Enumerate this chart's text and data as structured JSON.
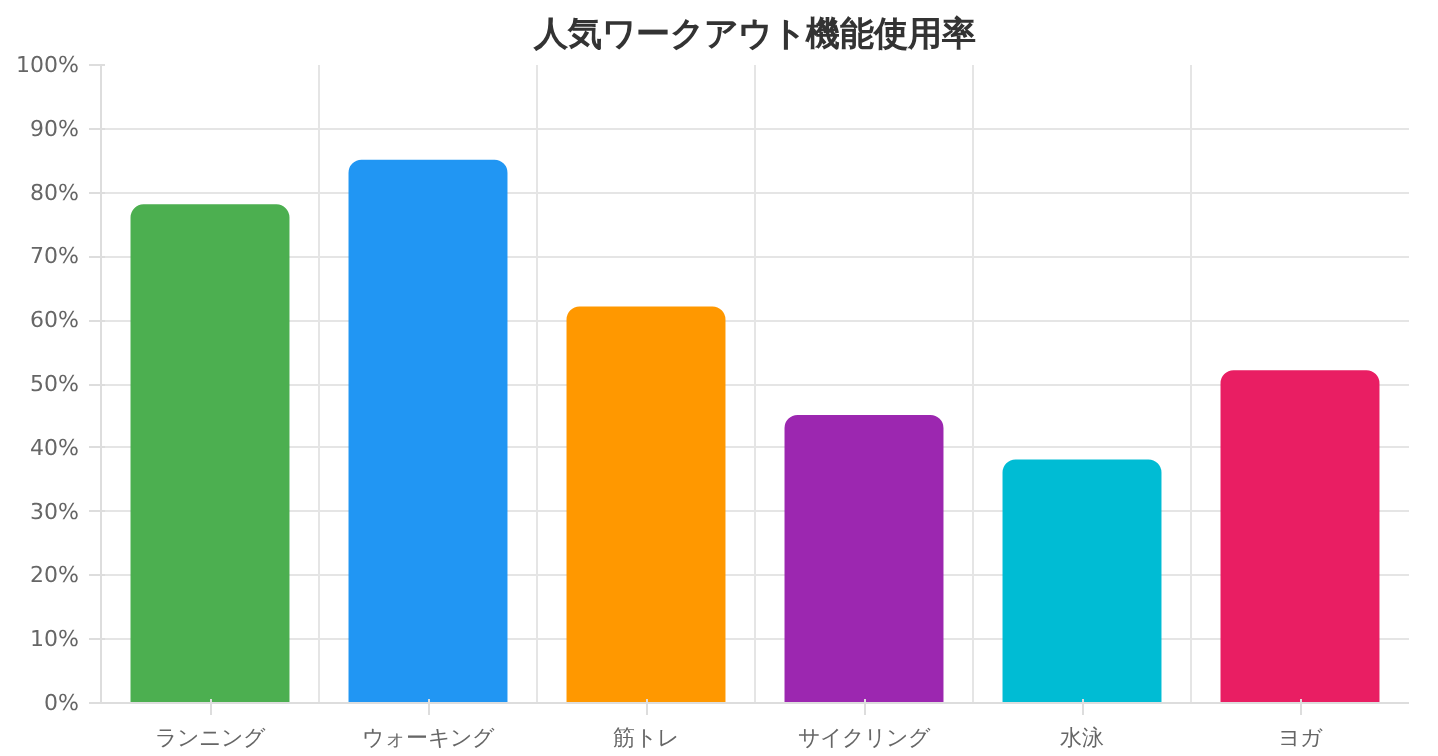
{
  "chart_data": {
    "type": "bar",
    "title": "人気ワークアウト機能使用率",
    "categories": [
      "ランニング",
      "ウォーキング",
      "筋トレ",
      "サイクリング",
      "水泳",
      "ヨガ"
    ],
    "values": [
      78,
      85,
      62,
      45,
      38,
      52
    ],
    "colors": [
      "#4caf50",
      "#2196f3",
      "#ff9800",
      "#9c27b0",
      "#00bcd4",
      "#e91e63"
    ],
    "ylim": [
      0,
      100
    ],
    "yticks": [
      {
        "value": 0,
        "label": "0%"
      },
      {
        "value": 10,
        "label": "10%"
      },
      {
        "value": 20,
        "label": "20%"
      },
      {
        "value": 30,
        "label": "30%"
      },
      {
        "value": 40,
        "label": "40%"
      },
      {
        "value": 50,
        "label": "50%"
      },
      {
        "value": 60,
        "label": "60%"
      },
      {
        "value": 70,
        "label": "70%"
      },
      {
        "value": 80,
        "label": "80%"
      },
      {
        "value": 90,
        "label": "90%"
      },
      {
        "value": 100,
        "label": "100%"
      }
    ],
    "grid": true
  }
}
